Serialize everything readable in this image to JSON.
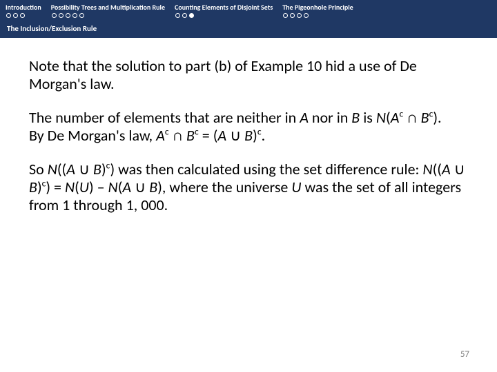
{
  "nav": {
    "items": [
      {
        "label": "Introduction",
        "dots": 3,
        "filled": -1
      },
      {
        "label": "Possibility Trees and Multiplication Rule",
        "dots": 5,
        "filled": -1
      },
      {
        "label": "Counting Elements of Disjoint Sets",
        "dots": 3,
        "filled": 2
      },
      {
        "label": "The Pigeonhole Principle",
        "dots": 4,
        "filled": -1
      }
    ],
    "sub": "The Inclusion/Exclusion Rule",
    "bg_color": "#1f3864",
    "text_color": "#ffffff"
  },
  "content": {
    "p1_a": "Note that the solution to part (b) of Example 10 hid a use of De Morgan's law.",
    "p2_a": "The number of elements that are neither in ",
    "p2_b": " nor in ",
    "p2_c": " is ",
    "p2_d": "By De Morgan's law, ",
    "p3_a": "So ",
    "p3_b": " was then calculated using the set difference rule: ",
    "p3_c": ", where the universe ",
    "p3_d": " was the set of all integers from 1 through 1, 000.",
    "sym": {
      "A": "A",
      "B": "B",
      "N": "N",
      "U": "U",
      "cap": "∩",
      "cup": "∪",
      "c": "c",
      "eq": " = ",
      "minus": " – ",
      "open": "(",
      "close": ")",
      "dopen": "((",
      "dclose": "))",
      "period": "."
    }
  },
  "page": "57",
  "style": {
    "body_font_size": 22,
    "nav_font_size": 10,
    "page_num_color": "#808080"
  }
}
